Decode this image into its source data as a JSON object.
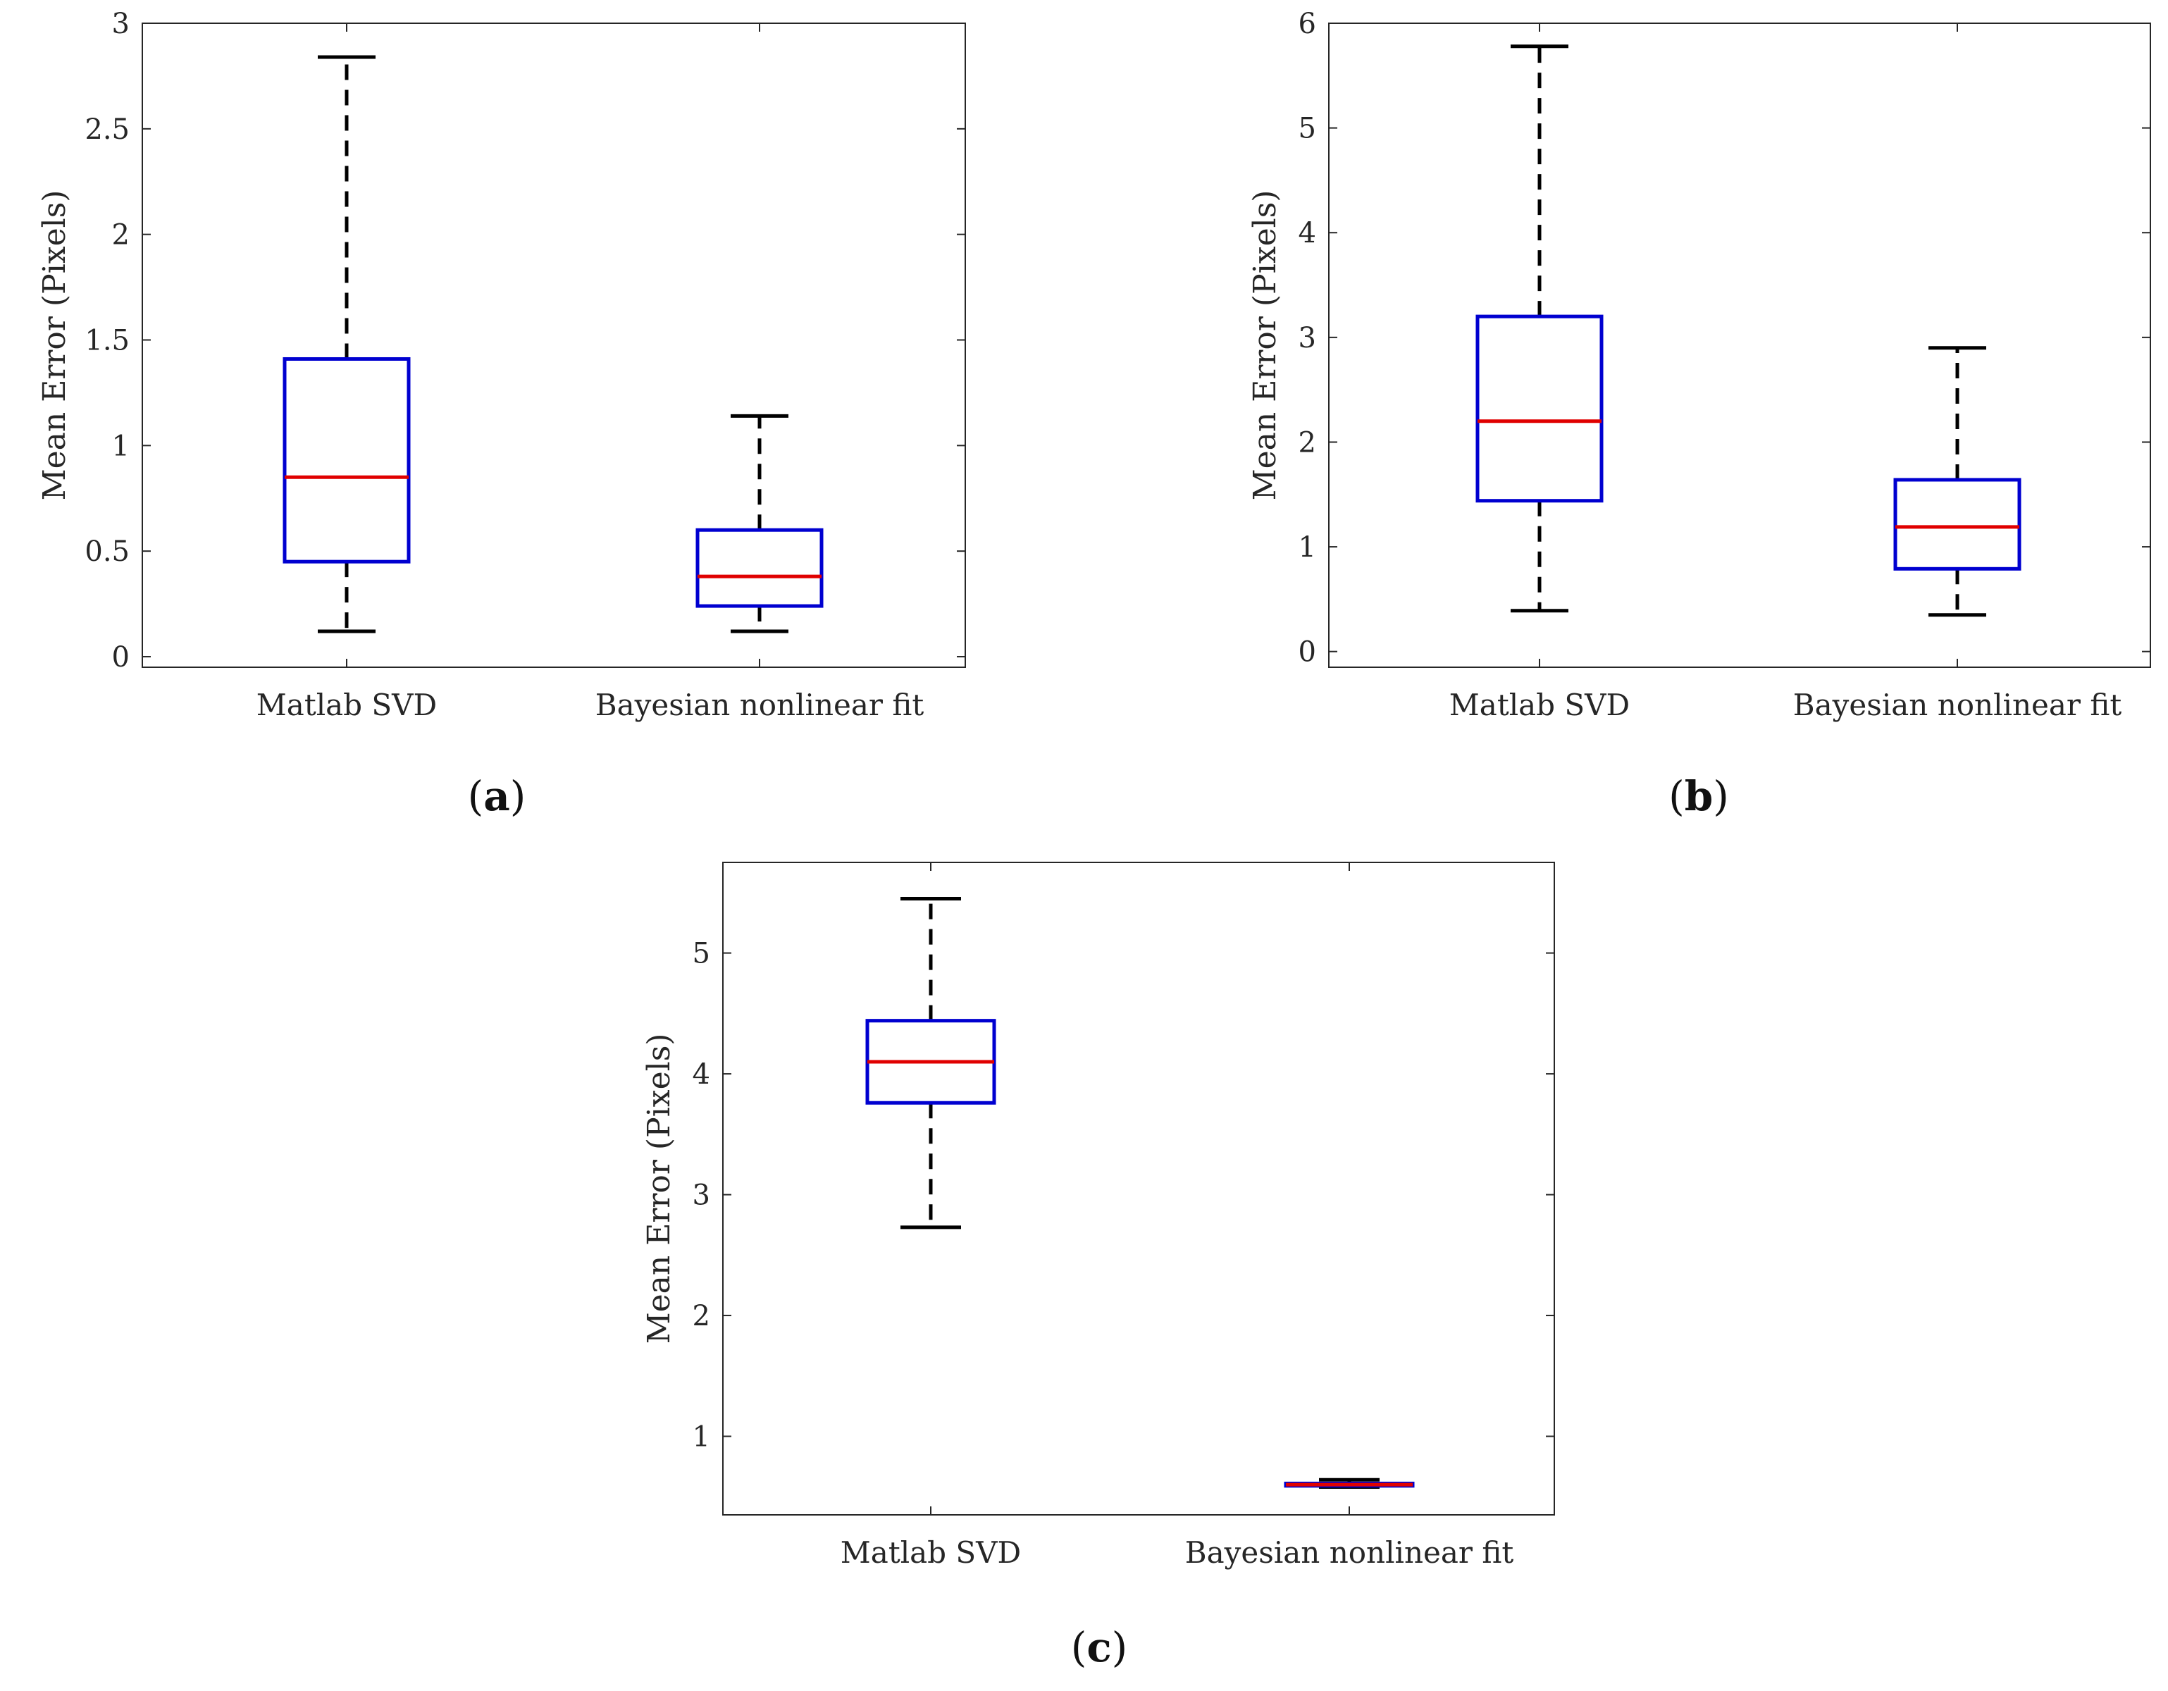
{
  "chart_data": [
    {
      "type": "box",
      "panel_label": "a",
      "ylabel": "Mean Error (Pixels)",
      "ylim": [
        -0.05,
        3
      ],
      "yticks": [
        0,
        0.5,
        1,
        1.5,
        2,
        2.5,
        3
      ],
      "ytick_labels": [
        "0",
        "0.5",
        "1",
        "1.5",
        "2",
        "2.5",
        "3"
      ],
      "categories": [
        "Matlab SVD",
        "Bayesian nonlinear fit"
      ],
      "boxes": [
        {
          "whisker_low": 0.12,
          "q1": 0.45,
          "median": 0.85,
          "q3": 1.41,
          "whisker_high": 2.84
        },
        {
          "whisker_low": 0.12,
          "q1": 0.24,
          "median": 0.38,
          "q3": 0.6,
          "whisker_high": 1.14
        }
      ],
      "colors": {
        "box": "#0000d0",
        "median": "#e00000",
        "whisker": "#000000"
      }
    },
    {
      "type": "box",
      "panel_label": "b",
      "ylabel": "Mean Error (Pixels)",
      "ylim": [
        -0.15,
        6
      ],
      "yticks": [
        0,
        1,
        2,
        3,
        4,
        5,
        6
      ],
      "ytick_labels": [
        "0",
        "1",
        "2",
        "3",
        "4",
        "5",
        "6"
      ],
      "categories": [
        "Matlab SVD",
        "Bayesian nonlinear fit"
      ],
      "boxes": [
        {
          "whisker_low": 0.39,
          "q1": 1.44,
          "median": 2.2,
          "q3": 3.2,
          "whisker_high": 5.78
        },
        {
          "whisker_low": 0.35,
          "q1": 0.79,
          "median": 1.19,
          "q3": 1.64,
          "whisker_high": 2.9
        }
      ],
      "colors": {
        "box": "#0000d0",
        "median": "#e00000",
        "whisker": "#000000"
      }
    },
    {
      "type": "box",
      "panel_label": "c",
      "ylabel": "Mean Error (Pixels)",
      "ylim": [
        0.35,
        5.75
      ],
      "yticks": [
        1,
        2,
        3,
        4,
        5
      ],
      "ytick_labels": [
        "1",
        "2",
        "3",
        "4",
        "5"
      ],
      "categories": [
        "Matlab SVD",
        "Bayesian nonlinear fit"
      ],
      "boxes": [
        {
          "whisker_low": 2.73,
          "q1": 3.76,
          "median": 4.1,
          "q3": 4.44,
          "whisker_high": 5.45
        },
        {
          "whisker_low": 0.58,
          "q1": 0.59,
          "median": 0.6,
          "q3": 0.61,
          "whisker_high": 0.64
        }
      ],
      "colors": {
        "box": "#0000d0",
        "median": "#e00000",
        "whisker": "#000000"
      }
    }
  ]
}
